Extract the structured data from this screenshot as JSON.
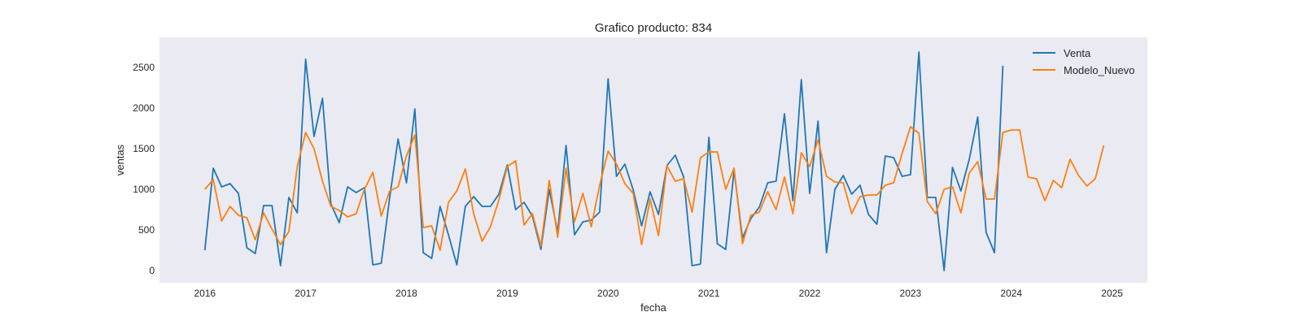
{
  "chart_data": {
    "type": "line",
    "title": "Grafico producto: 834",
    "xlabel": "fecha",
    "ylabel": "ventas",
    "xlim": [
      2015.55,
      2025.35
    ],
    "ylim": [
      -150,
      2870
    ],
    "x_ticks": [
      2016,
      2017,
      2018,
      2019,
      2020,
      2021,
      2022,
      2023,
      2024,
      2025
    ],
    "y_ticks": [
      0,
      500,
      1000,
      1500,
      2000,
      2500
    ],
    "grid": false,
    "legend_position": "top-right",
    "x_start_year": 2016,
    "points_per_year": 12,
    "background_color": "#eaeaf2",
    "series": [
      {
        "name": "Venta",
        "color": "#1f77b4",
        "values": [
          250,
          1260,
          1030,
          1070,
          950,
          280,
          210,
          800,
          800,
          60,
          900,
          710,
          2600,
          1650,
          2120,
          820,
          590,
          1030,
          960,
          1020,
          70,
          90,
          900,
          1620,
          1080,
          1990,
          220,
          150,
          790,
          440,
          70,
          790,
          910,
          790,
          790,
          940,
          1300,
          750,
          840,
          670,
          260,
          1000,
          470,
          1540,
          440,
          600,
          620,
          720,
          2360,
          1160,
          1310,
          990,
          550,
          970,
          690,
          1290,
          1420,
          1150,
          60,
          80,
          1640,
          330,
          260,
          1230,
          400,
          640,
          780,
          1080,
          1100,
          1930,
          860,
          2350,
          950,
          1840,
          220,
          1000,
          1170,
          940,
          1050,
          690,
          570,
          1410,
          1390,
          1160,
          1180,
          2690,
          900,
          900,
          0,
          1270,
          980,
          1370,
          1890,
          470,
          220,
          2520
        ]
      },
      {
        "name": "Modelo_Nuevo",
        "color": "#ff7f0e",
        "values": [
          1000,
          1120,
          610,
          790,
          680,
          650,
          380,
          710,
          510,
          320,
          480,
          1280,
          1700,
          1500,
          1100,
          790,
          740,
          660,
          700,
          1000,
          1210,
          670,
          980,
          1030,
          1410,
          1670,
          530,
          550,
          250,
          840,
          980,
          1250,
          700,
          360,
          540,
          870,
          1280,
          1350,
          560,
          700,
          300,
          1110,
          410,
          1260,
          600,
          950,
          540,
          1050,
          1470,
          1310,
          1070,
          950,
          320,
          880,
          430,
          1290,
          1100,
          1130,
          720,
          1390,
          1460,
          1460,
          1000,
          1260,
          330,
          680,
          720,
          970,
          750,
          1150,
          700,
          1450,
          1280,
          1610,
          1160,
          1090,
          1080,
          700,
          910,
          930,
          930,
          1050,
          1080,
          1440,
          1770,
          1690,
          850,
          700,
          1000,
          1030,
          710,
          1200,
          1340,
          880,
          880,
          1700,
          1730,
          1730,
          1150,
          1130,
          860,
          1110,
          1020,
          1370,
          1170,
          1040,
          1130,
          1540
        ]
      }
    ]
  }
}
